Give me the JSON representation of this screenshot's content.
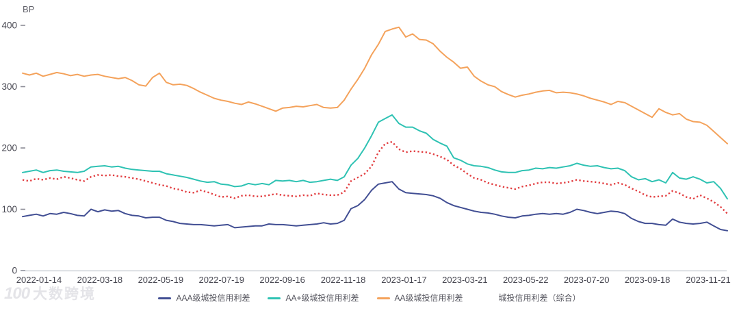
{
  "watermark": {
    "logo": "100",
    "brand": "大数跨境"
  },
  "chart_data": {
    "type": "line",
    "title": "",
    "xlabel": "",
    "ylabel": "BP",
    "ylim": [
      0,
      400
    ],
    "yticks": [
      0,
      100,
      200,
      300,
      400
    ],
    "grid": false,
    "legend_position": "bottom",
    "xtick_labels": [
      "2022-01-14",
      "2022-03-18",
      "2022-05-19",
      "2022-07-19",
      "2022-09-16",
      "2022-11-18",
      "2023-01-17",
      "2023-03-21",
      "2023-05-22",
      "2023-07-20",
      "2023-09-18",
      "2023-11-21"
    ],
    "axis_colors": {
      "axis_line": "#a9afba",
      "tick": "#8b8b95",
      "label": "#474751"
    },
    "series": [
      {
        "name": "AAA级城投信用利差",
        "color": "#414E93",
        "style": "solid",
        "values": [
          88,
          90,
          92,
          89,
          93,
          92,
          95,
          93,
          90,
          89,
          100,
          96,
          99,
          97,
          98,
          93,
          90,
          89,
          86,
          87,
          87,
          82,
          80,
          77,
          76,
          75,
          75,
          74,
          73,
          74,
          75,
          70,
          71,
          72,
          73,
          73,
          76,
          75,
          75,
          74,
          73,
          74,
          75,
          76,
          78,
          76,
          77,
          82,
          101,
          106,
          116,
          131,
          141,
          143,
          145,
          133,
          127,
          126,
          125,
          124,
          122,
          118,
          111,
          106,
          103,
          100,
          97,
          95,
          94,
          92,
          89,
          87,
          86,
          89,
          90,
          92,
          93,
          92,
          93,
          92,
          95,
          100,
          98,
          95,
          93,
          95,
          97,
          96,
          93,
          85,
          80,
          77,
          77,
          75,
          74,
          84,
          79,
          77,
          76,
          77,
          79,
          73,
          67,
          65
        ]
      },
      {
        "name": "AA+级城投信用利差",
        "color": "#2EC2B3",
        "style": "solid",
        "values": [
          160,
          162,
          164,
          160,
          163,
          164,
          162,
          161,
          160,
          162,
          169,
          170,
          171,
          169,
          170,
          167,
          165,
          164,
          163,
          162,
          162,
          158,
          156,
          154,
          152,
          149,
          146,
          144,
          145,
          141,
          140,
          137,
          138,
          142,
          140,
          142,
          140,
          147,
          146,
          147,
          145,
          147,
          144,
          145,
          147,
          149,
          147,
          153,
          172,
          183,
          200,
          220,
          242,
          248,
          254,
          240,
          234,
          234,
          228,
          224,
          214,
          208,
          203,
          184,
          180,
          174,
          171,
          170,
          168,
          164,
          161,
          160,
          160,
          163,
          164,
          167,
          166,
          168,
          167,
          169,
          171,
          175,
          172,
          170,
          171,
          168,
          166,
          167,
          163,
          153,
          148,
          150,
          145,
          148,
          143,
          160,
          151,
          149,
          153,
          149,
          143,
          145,
          134,
          117
        ]
      },
      {
        "name": "AA级城投信用利差",
        "color": "#F4A25B",
        "style": "solid",
        "values": [
          322,
          319,
          322,
          317,
          320,
          323,
          321,
          318,
          320,
          317,
          319,
          320,
          317,
          315,
          313,
          315,
          310,
          303,
          301,
          315,
          322,
          307,
          303,
          304,
          302,
          297,
          291,
          286,
          281,
          278,
          276,
          273,
          271,
          275,
          272,
          268,
          264,
          260,
          265,
          266,
          268,
          267,
          269,
          271,
          266,
          265,
          266,
          278,
          296,
          312,
          330,
          352,
          369,
          390,
          394,
          397,
          381,
          386,
          377,
          376,
          370,
          358,
          348,
          340,
          330,
          332,
          317,
          309,
          303,
          300,
          292,
          287,
          283,
          286,
          288,
          291,
          293,
          294,
          290,
          291,
          290,
          288,
          285,
          281,
          278,
          275,
          271,
          276,
          274,
          268,
          262,
          256,
          250,
          264,
          258,
          254,
          256,
          247,
          243,
          242,
          237,
          227,
          217,
          207
        ]
      },
      {
        "name": "城投信用利差（综合）",
        "color": "#E23E41",
        "style": "dotted",
        "values": [
          148,
          146,
          150,
          148,
          151,
          149,
          153,
          151,
          148,
          146,
          153,
          156,
          155,
          156,
          154,
          153,
          151,
          149,
          146,
          143,
          140,
          138,
          134,
          132,
          128,
          127,
          131,
          128,
          124,
          120,
          121,
          118,
          122,
          123,
          121,
          121,
          123,
          125,
          123,
          122,
          121,
          123,
          122,
          126,
          124,
          123,
          123,
          128,
          146,
          152,
          158,
          170,
          193,
          207,
          210,
          198,
          193,
          195,
          194,
          193,
          190,
          186,
          181,
          172,
          166,
          158,
          151,
          148,
          143,
          140,
          137,
          135,
          133,
          137,
          139,
          142,
          144,
          144,
          142,
          143,
          145,
          148,
          146,
          145,
          144,
          142,
          140,
          143,
          140,
          134,
          129,
          123,
          120,
          121,
          122,
          130,
          126,
          120,
          117,
          123,
          118,
          112,
          104,
          93
        ]
      }
    ]
  }
}
